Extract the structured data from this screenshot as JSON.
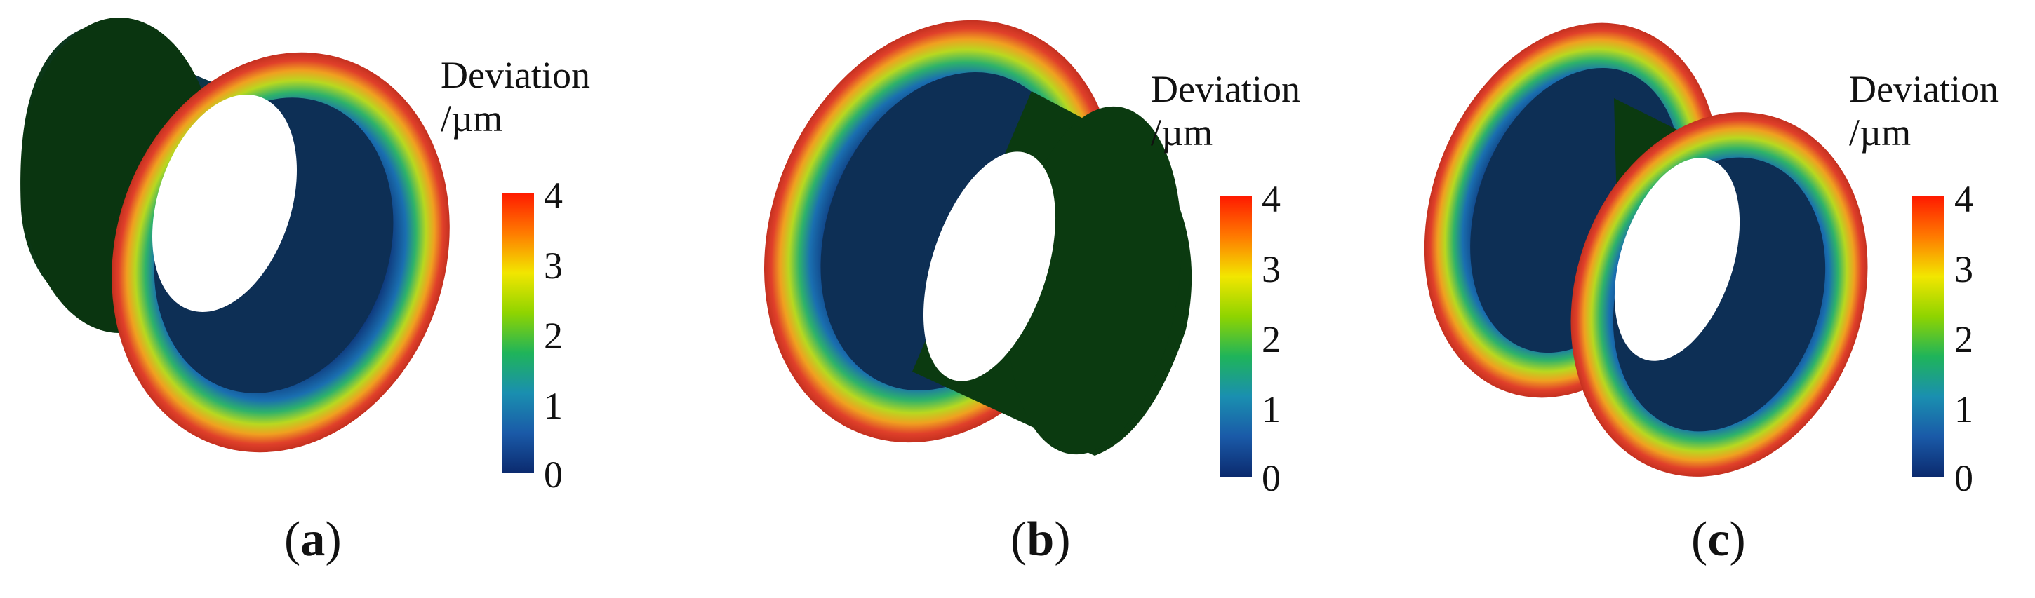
{
  "panels": [
    {
      "label": "a",
      "view": "flange-front-right"
    },
    {
      "label": "b",
      "view": "flange-back-left"
    },
    {
      "label": "c",
      "view": "double-flange"
    }
  ],
  "legend": {
    "title_line1": "Deviation",
    "title_line2": "/µm",
    "ticks": [
      "4",
      "3",
      "2",
      "1",
      "0"
    ],
    "colors": [
      "#ff1a00",
      "#ff7a00",
      "#f2e600",
      "#8fd400",
      "#1fb45a",
      "#1a8fb0",
      "#1a5aa8",
      "#0b2a6e"
    ]
  },
  "mesh_colors": {
    "cylinder_body": "#0b3a10",
    "inner_blue": "#13306b",
    "rim_outer": "#e0402a",
    "rim_mid": "#e59a1e",
    "rim_inner": "#2eb26a"
  }
}
